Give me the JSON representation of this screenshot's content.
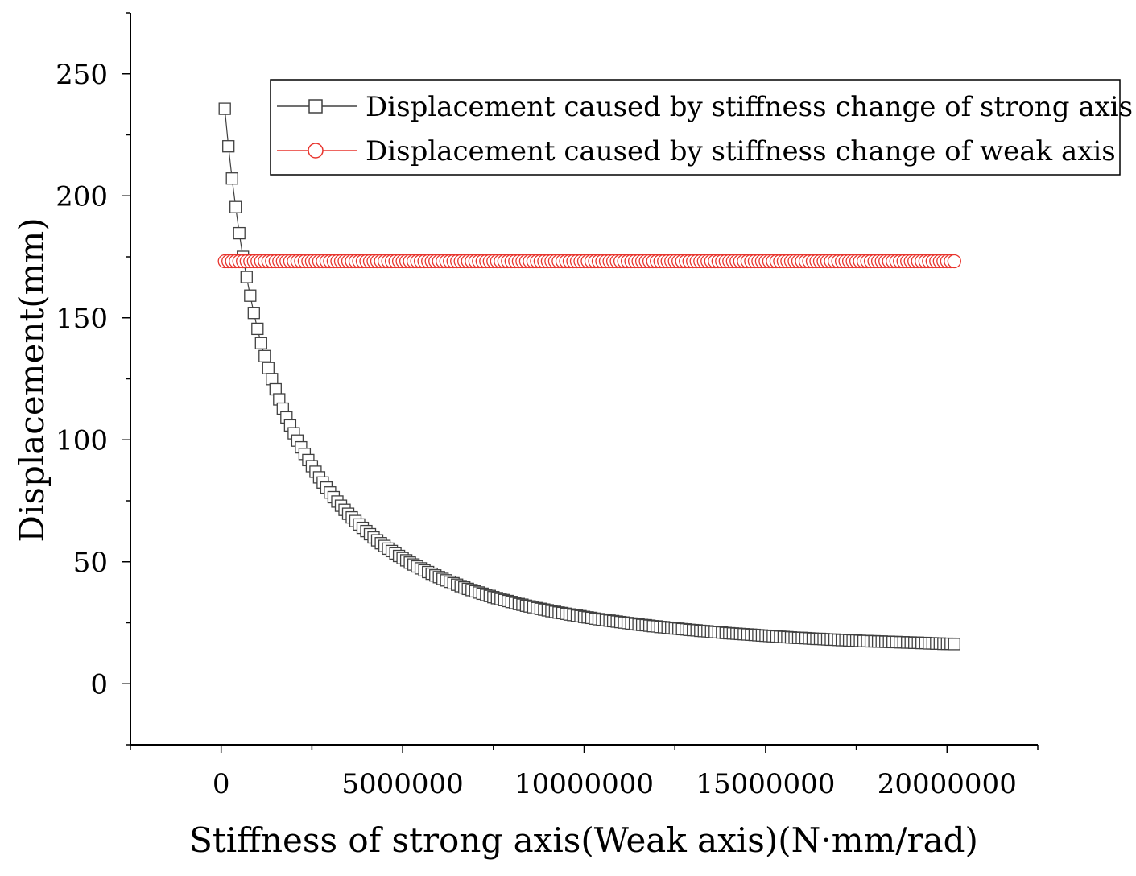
{
  "chart_data": {
    "type": "line",
    "title": "",
    "xlabel": "Stiffness of strong axis(Weak axis)(N·mm/rad)",
    "ylabel": "Displacement(mm)",
    "xlim": [
      -2500000,
      22500000
    ],
    "ylim": [
      -25,
      275
    ],
    "x_ticks": [
      0,
      5000000,
      10000000,
      15000000,
      20000000
    ],
    "x_tick_labels": [
      "0",
      "5000000",
      "10000000",
      "15000000",
      "20000000"
    ],
    "y_ticks": [
      0,
      50,
      100,
      150,
      200,
      250
    ],
    "y_tick_labels": [
      "0",
      "50",
      "100",
      "150",
      "200",
      "250"
    ],
    "grid": false,
    "legend_position": "top-right",
    "x_start": 100000,
    "x_step": 100000,
    "series": [
      {
        "name": "Displacement caused by stiffness change of strong axis",
        "color": "#404040",
        "marker": "square",
        "values": [
          235.7,
          220.3,
          207.1,
          195.4,
          184.7,
          175.0,
          166.7,
          159.1,
          152.0,
          145.5,
          139.6,
          134.3,
          129.4,
          124.9,
          120.7,
          116.6,
          112.8,
          109.2,
          105.9,
          102.7,
          99.7,
          96.9,
          94.2,
          91.7,
          89.2,
          86.9,
          84.6,
          82.5,
          80.4,
          78.4,
          76.5,
          74.7,
          73.0,
          71.3,
          69.7,
          68.2,
          66.7,
          65.3,
          63.9,
          62.6,
          61.3,
          60.0,
          58.8,
          57.6,
          56.5,
          55.4,
          54.4,
          53.4,
          52.4,
          51.5,
          50.6,
          49.7,
          48.9,
          48.1,
          47.3,
          46.5,
          45.8,
          45.1,
          44.4,
          43.7,
          43.0,
          42.4,
          41.8,
          41.2,
          40.6,
          40.0,
          39.5,
          38.9,
          38.4,
          37.9,
          37.4,
          36.9,
          36.4,
          36.0,
          35.5,
          35.1,
          34.7,
          34.3,
          33.9,
          33.5,
          33.1,
          32.7,
          32.4,
          32.0,
          31.7,
          31.4,
          31.0,
          30.7,
          30.4,
          30.1,
          29.8,
          29.5,
          29.2,
          29.0,
          28.7,
          28.4,
          28.2,
          27.9,
          27.7,
          27.4,
          27.2,
          27.0,
          26.7,
          26.5,
          26.3,
          26.1,
          25.9,
          25.7,
          25.5,
          25.3,
          25.1,
          24.9,
          24.7,
          24.5,
          24.3,
          24.1,
          24.0,
          23.8,
          23.6,
          23.5,
          23.3,
          23.2,
          23.0,
          22.9,
          22.7,
          22.6,
          22.4,
          22.3,
          22.1,
          22.0,
          21.9,
          21.7,
          21.6,
          21.5,
          21.3,
          21.2,
          21.1,
          21.0,
          20.8,
          20.7,
          20.6,
          20.5,
          20.4,
          20.3,
          20.2,
          20.1,
          20.0,
          19.9,
          19.8,
          19.7,
          19.6,
          19.5,
          19.4,
          19.3,
          19.2,
          19.1,
          19.0,
          18.9,
          18.8,
          18.8,
          18.7,
          18.6,
          18.5,
          18.4,
          18.4,
          18.3,
          18.2,
          18.1,
          18.1,
          18.0,
          17.9,
          17.9,
          17.8,
          17.7,
          17.7,
          17.6,
          17.5,
          17.5,
          17.4,
          17.4,
          17.3,
          17.3,
          17.2,
          17.2,
          17.1,
          17.1,
          17.0,
          17.0,
          16.9,
          16.9,
          16.8,
          16.8,
          16.7,
          16.7,
          16.6,
          16.6,
          16.5,
          16.5,
          16.4,
          16.4,
          16.4,
          16.3
        ]
      },
      {
        "name": "Displacement caused by stiffness change of weak axis",
        "color": "#e8342d",
        "marker": "circle",
        "constant_value": 173.2
      }
    ]
  }
}
